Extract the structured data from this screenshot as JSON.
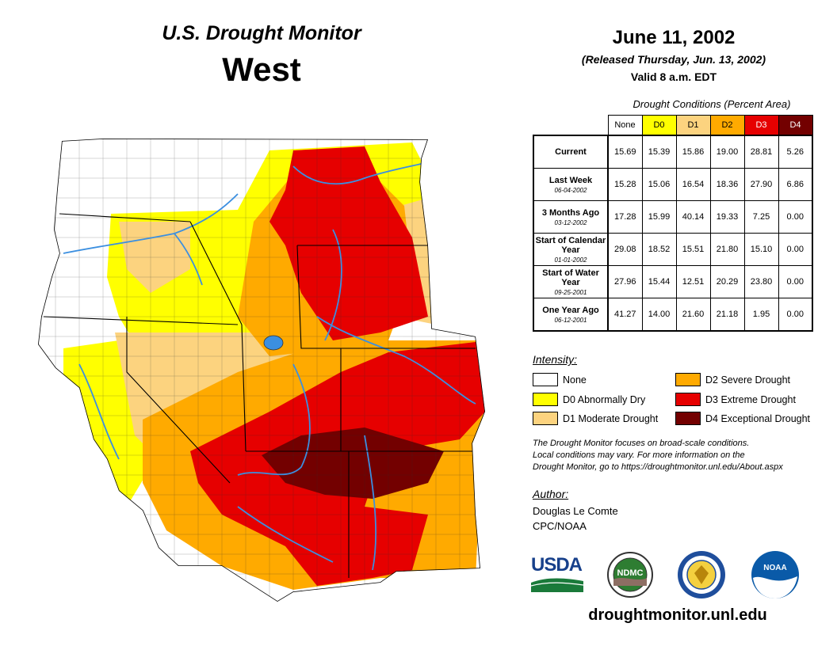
{
  "title": {
    "main": "U.S. Drought Monitor",
    "region": "West"
  },
  "date": {
    "map_date": "June 11, 2002",
    "released": "(Released Thursday, Jun. 13, 2002)",
    "valid": "Valid 8 a.m. EDT"
  },
  "table": {
    "caption": "Drought Conditions (Percent Area)",
    "headers": [
      "None",
      "D0",
      "D1",
      "D2",
      "D3",
      "D4"
    ],
    "rows": [
      {
        "label": "Current",
        "sub": "",
        "values": [
          "15.69",
          "15.39",
          "15.86",
          "19.00",
          "28.81",
          "5.26"
        ]
      },
      {
        "label": "Last Week",
        "sub": "06-04-2002",
        "values": [
          "15.28",
          "15.06",
          "16.54",
          "18.36",
          "27.90",
          "6.86"
        ]
      },
      {
        "label": "3 Months Ago",
        "sub": "03-12-2002",
        "values": [
          "17.28",
          "15.99",
          "40.14",
          "19.33",
          "7.25",
          "0.00"
        ]
      },
      {
        "label": "Start of Calendar Year",
        "sub": "01-01-2002",
        "values": [
          "29.08",
          "18.52",
          "15.51",
          "21.80",
          "15.10",
          "0.00"
        ]
      },
      {
        "label": "Start of Water Year",
        "sub": "09-25-2001",
        "values": [
          "27.96",
          "15.44",
          "12.51",
          "20.29",
          "23.80",
          "0.00"
        ]
      },
      {
        "label": "One Year Ago",
        "sub": "06-12-2001",
        "values": [
          "41.27",
          "14.00",
          "21.60",
          "21.18",
          "1.95",
          "0.00"
        ]
      }
    ]
  },
  "legend": {
    "title": "Intensity:",
    "items": [
      {
        "label": "None",
        "color": "#ffffff"
      },
      {
        "label": "D0 Abnormally Dry",
        "color": "#ffff00"
      },
      {
        "label": "D1 Moderate Drought",
        "color": "#fcd37f"
      },
      {
        "label": "D2 Severe Drought",
        "color": "#ffaa00"
      },
      {
        "label": "D3 Extreme Drought",
        "color": "#e60000"
      },
      {
        "label": "D4 Exceptional Drought",
        "color": "#730000"
      }
    ]
  },
  "note": {
    "line1": "The Drought Monitor focuses on broad-scale conditions.",
    "line2": "Local conditions may vary. For more information on the",
    "line3": "Drought Monitor, go to https://droughtmonitor.unl.edu/About.aspx"
  },
  "author": {
    "label": "Author:",
    "name": "Douglas Le Comte",
    "org": "CPC/NOAA"
  },
  "logos": {
    "usda": "USDA",
    "ndmc": "NDMC",
    "noaa": "NOAA"
  },
  "website": "droughtmonitor.unl.edu",
  "colors": {
    "d0": "#ffff00",
    "d1": "#fcd37f",
    "d2": "#ffaa00",
    "d3": "#e60000",
    "d4": "#730000",
    "rivers": "#3b8fe0",
    "usda_green": "#1a7a3a",
    "usda_blue": "#17408b",
    "noaa_blue": "#0a5aa8"
  }
}
